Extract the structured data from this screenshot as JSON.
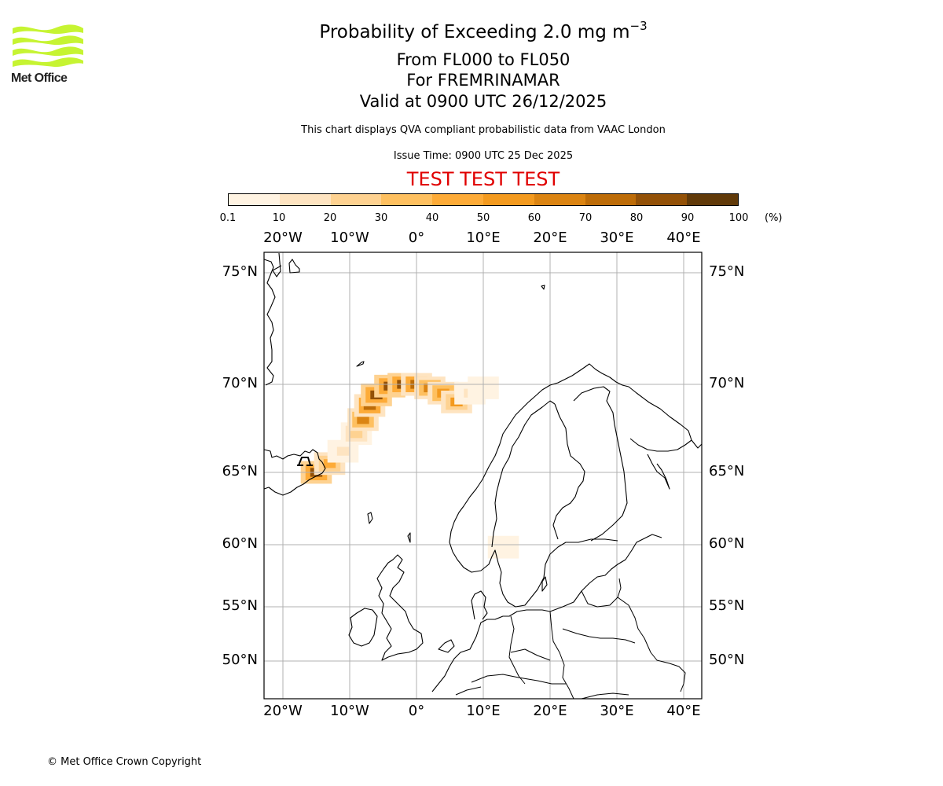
{
  "logo": {
    "name": "Met Office",
    "color": "#c6f432"
  },
  "header": {
    "title_main": "Probability of Exceeding 2.0 mg m",
    "title_exponent": "−3",
    "flight_levels": "From FL000 to FL050",
    "volcano": "For FREMRINAMAR",
    "valid_time": "Valid at 0900 UTC 26/12/2025",
    "description": "This chart displays QVA compliant probabilistic data from VAAC London",
    "issue_time": "Issue Time: 0900 UTC 25 Dec 2025",
    "test_banner": "TEST TEST TEST",
    "test_color": "#e00000"
  },
  "colorbar": {
    "ticks": [
      "0.1",
      "10",
      "20",
      "30",
      "40",
      "50",
      "60",
      "70",
      "80",
      "90",
      "100"
    ],
    "unit": "(%)",
    "colors": [
      "#fff3e2",
      "#fee4c1",
      "#fed291",
      "#fec060",
      "#fdab38",
      "#f39a1f",
      "#db8412",
      "#bd6c08",
      "#935107",
      "#613a09"
    ]
  },
  "chart_data": {
    "type": "heatmap",
    "title": "Probability of Exceeding 2.0 mg m-3",
    "projection": "map",
    "xlim": [
      -23,
      43
    ],
    "ylim": [
      47,
      76
    ],
    "lon_ticks": [
      "20°W",
      "10°W",
      "0°",
      "10°E",
      "20°E",
      "30°E",
      "40°E"
    ],
    "lat_ticks": [
      "75°N",
      "70°N",
      "65°N",
      "60°N",
      "55°N",
      "50°N"
    ],
    "value_unit": "%",
    "plume": [
      {
        "lon": -15.0,
        "lat": 65.0,
        "p": 85
      },
      {
        "lon": -13.0,
        "lat": 65.5,
        "p": 40
      },
      {
        "lon": -11.0,
        "lat": 66.2,
        "p": 10
      },
      {
        "lon": -9.0,
        "lat": 67.2,
        "p": 20
      },
      {
        "lon": -8.0,
        "lat": 68.0,
        "p": 60
      },
      {
        "lon": -7.0,
        "lat": 68.8,
        "p": 75
      },
      {
        "lon": -6.0,
        "lat": 69.4,
        "p": 80
      },
      {
        "lon": -4.0,
        "lat": 69.9,
        "p": 85
      },
      {
        "lon": -2.0,
        "lat": 70.0,
        "p": 85
      },
      {
        "lon": 0.0,
        "lat": 70.0,
        "p": 75
      },
      {
        "lon": 2.0,
        "lat": 69.8,
        "p": 60
      },
      {
        "lon": 4.0,
        "lat": 69.5,
        "p": 55
      },
      {
        "lon": 6.0,
        "lat": 69.0,
        "p": 50
      },
      {
        "lon": 8.0,
        "lat": 69.5,
        "p": 15
      },
      {
        "lon": 10.0,
        "lat": 69.8,
        "p": 5
      },
      {
        "lon": 13.0,
        "lat": 59.8,
        "p": 8
      }
    ]
  },
  "copyright": "© Met Office Crown Copyright"
}
